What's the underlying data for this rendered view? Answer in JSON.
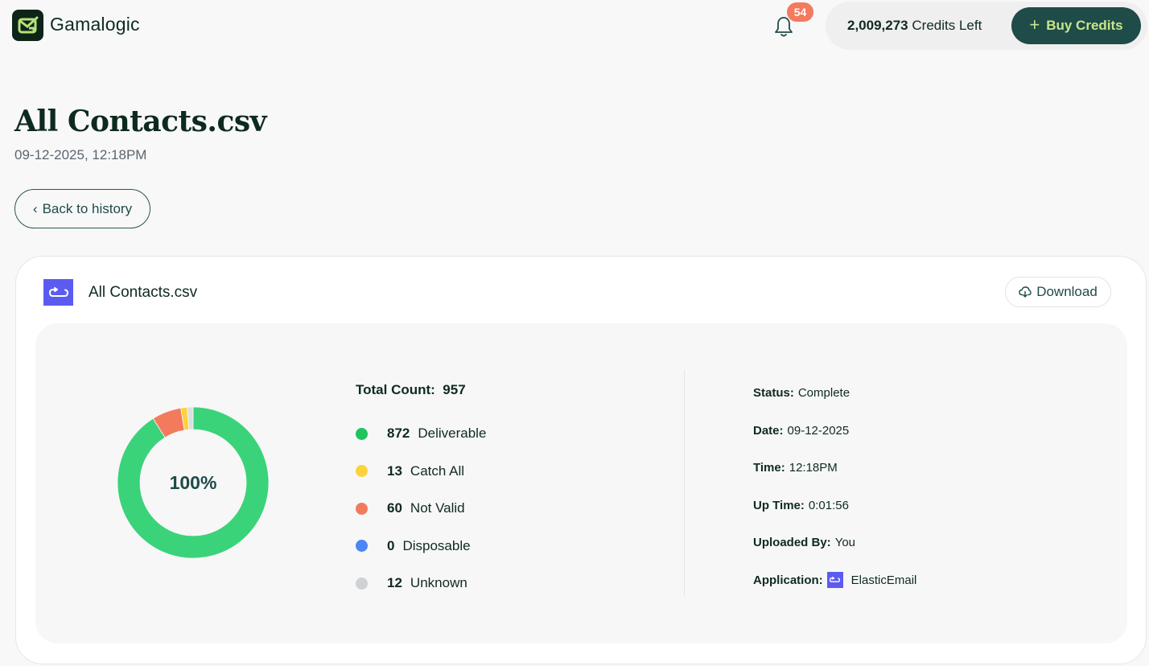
{
  "header": {
    "brand": "Gamalogic",
    "notifications_count": "54",
    "credits_amount": "2,009,273",
    "credits_label": "Credits Left",
    "buy_button_icon": "+",
    "buy_button_label": "Buy Credits"
  },
  "page": {
    "title": "All Contacts.csv",
    "subtitle": "09-12-2025, 12:18PM",
    "back_button_icon": "‹",
    "back_button_label": "Back to history"
  },
  "card": {
    "file_name": "All Contacts.csv",
    "download_label": "Download",
    "donut_center_label": "100%",
    "total_label": "Total Count:",
    "total_value": "957",
    "legend": [
      {
        "count": "872",
        "label": "Deliverable",
        "color": "#1fc45c"
      },
      {
        "count": "13",
        "label": "Catch All",
        "color": "#fdd23a"
      },
      {
        "count": "60",
        "label": "Not Valid",
        "color": "#f47a5d"
      },
      {
        "count": "0",
        "label": "Disposable",
        "color": "#4a86f5"
      },
      {
        "count": "12",
        "label": "Unknown",
        "color": "#cfd2d4"
      }
    ],
    "details": [
      {
        "label": "Status:",
        "value": "Complete"
      },
      {
        "label": "Date:",
        "value": "09-12-2025"
      },
      {
        "label": "Time:",
        "value": "12:18PM"
      },
      {
        "label": "Up Time:",
        "value": "0:01:56"
      },
      {
        "label": "Uploaded By:",
        "value": "You"
      },
      {
        "label": "Application:",
        "value": "ElasticEmail"
      }
    ]
  },
  "chart_data": {
    "type": "pie",
    "variant": "donut",
    "title": "",
    "center_label": "100%",
    "categories": [
      "Deliverable",
      "Not Valid",
      "Catch All",
      "Disposable",
      "Unknown"
    ],
    "values": [
      872,
      60,
      13,
      0,
      12
    ],
    "colors": [
      "#3ad37a",
      "#f47a5d",
      "#fdd23a",
      "#4a86f5",
      "#dcdfe1"
    ],
    "total": 957,
    "legend_position": "right"
  }
}
